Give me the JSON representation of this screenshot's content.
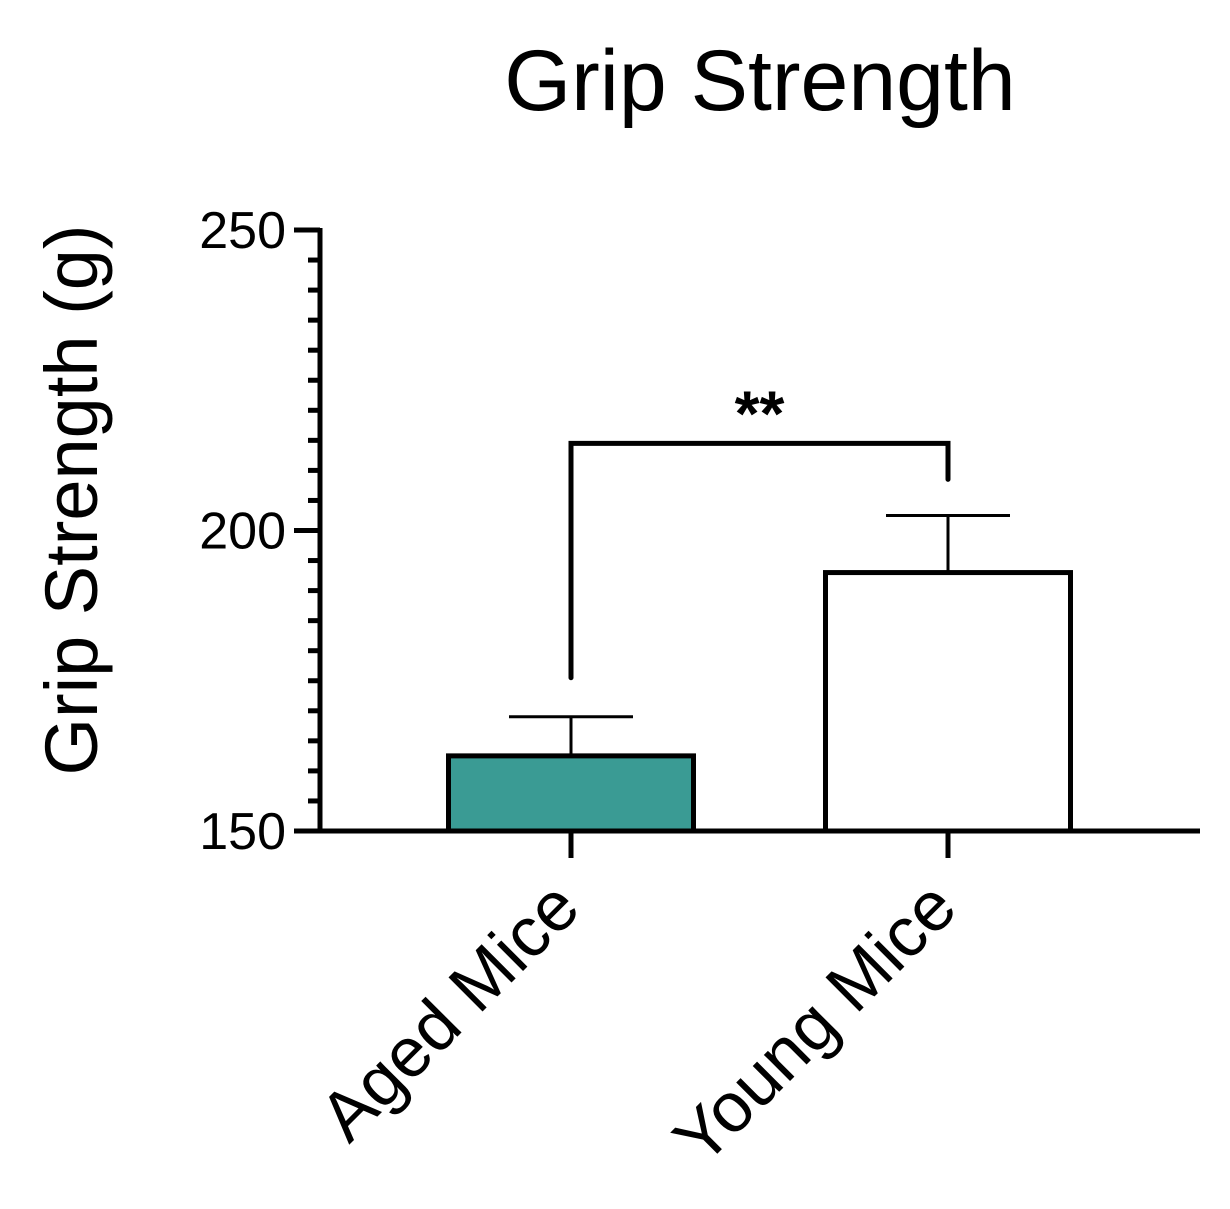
{
  "chart_data": {
    "type": "bar",
    "title": "Grip Strength",
    "xlabel": "",
    "ylabel": "Grip Strength (g)",
    "categories": [
      "Aged Mice",
      "Young Mice"
    ],
    "values": [
      162.5,
      193
    ],
    "error": [
      6.5,
      9.5
    ],
    "ylim": [
      150,
      250
    ],
    "yticks": [
      150,
      200,
      250
    ],
    "ytick_labels": [
      "150",
      "200",
      "250"
    ],
    "minor_tick_step": 5,
    "bar_colors": [
      "#3a9b94",
      "#ffffff"
    ],
    "grid": false,
    "significance": {
      "label": "**",
      "between": [
        0,
        1
      ],
      "y": 214.5,
      "left_end": 175.5,
      "right_end": 208.5
    }
  }
}
